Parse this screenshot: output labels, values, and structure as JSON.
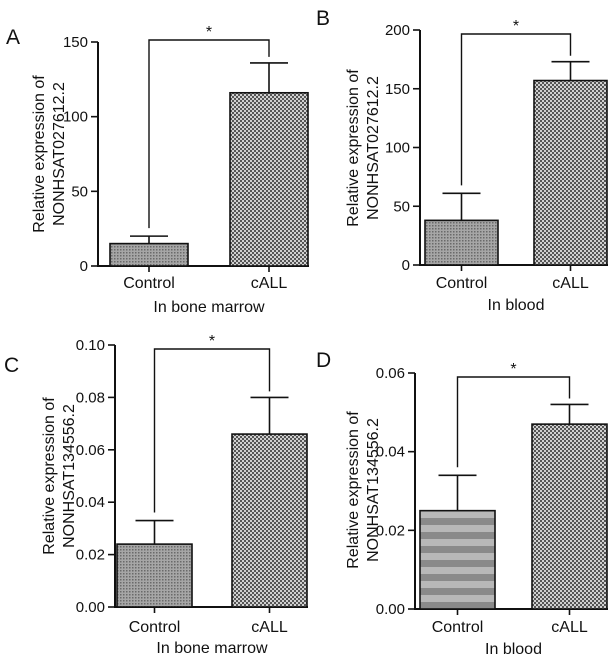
{
  "chart_data": [
    {
      "type": "bar",
      "panel": "A",
      "categories": [
        "Control",
        "cALL"
      ],
      "values": [
        15,
        116
      ],
      "errors": [
        5,
        20
      ],
      "ylabel": [
        "Relative expression of",
        "NONHSAT027612.2"
      ],
      "xlabel": "In bone marrow",
      "ylim": [
        0,
        150
      ],
      "yticks": [
        0,
        50,
        100,
        150
      ],
      "significance": "*",
      "grid": false
    },
    {
      "type": "bar",
      "panel": "B",
      "categories": [
        "Control",
        "cALL"
      ],
      "values": [
        38,
        157
      ],
      "errors": [
        23,
        16
      ],
      "ylabel": [
        "Relative expression of",
        "NONHSAT027612.2"
      ],
      "xlabel": "In blood",
      "ylim": [
        0,
        200
      ],
      "yticks": [
        0,
        50,
        100,
        150,
        200
      ],
      "significance": "*",
      "grid": false
    },
    {
      "type": "bar",
      "panel": "C",
      "categories": [
        "Control",
        "cALL"
      ],
      "values": [
        0.024,
        0.066
      ],
      "errors": [
        0.009,
        0.014
      ],
      "ylabel": [
        "Relative expression of",
        "NONHSAT134556.2"
      ],
      "xlabel": "In bone marrow",
      "ylim": [
        0,
        0.1
      ],
      "yticks": [
        "0.00",
        "0.02",
        "0.04",
        "0.06",
        "0.08",
        "0.10"
      ],
      "significance": "*",
      "grid": false
    },
    {
      "type": "bar",
      "panel": "D",
      "categories": [
        "Control",
        "cALL"
      ],
      "values": [
        0.025,
        0.047
      ],
      "errors": [
        0.009,
        0.005
      ],
      "ylabel": [
        "Relative expression of",
        "NONHSAT134556.2"
      ],
      "xlabel": "In blood",
      "ylim": [
        0,
        0.06
      ],
      "yticks": [
        "0.00",
        "0.02",
        "0.04",
        "0.06"
      ],
      "significance": "*",
      "grid": false
    }
  ],
  "colors": {
    "control_fill": "#8f8f8f",
    "call_fill": "#9a9a9a",
    "axis": "#111111"
  }
}
